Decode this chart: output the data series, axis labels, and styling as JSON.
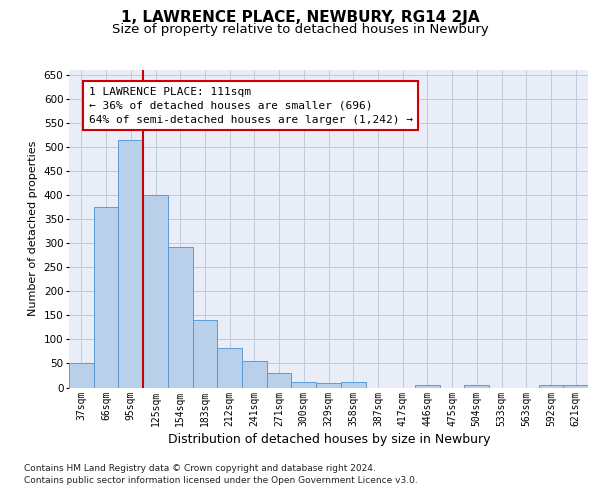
{
  "title": "1, LAWRENCE PLACE, NEWBURY, RG14 2JA",
  "subtitle": "Size of property relative to detached houses in Newbury",
  "xlabel": "Distribution of detached houses by size in Newbury",
  "ylabel": "Number of detached properties",
  "categories": [
    "37sqm",
    "66sqm",
    "95sqm",
    "125sqm",
    "154sqm",
    "183sqm",
    "212sqm",
    "241sqm",
    "271sqm",
    "300sqm",
    "329sqm",
    "358sqm",
    "387sqm",
    "417sqm",
    "446sqm",
    "475sqm",
    "504sqm",
    "533sqm",
    "563sqm",
    "592sqm",
    "621sqm"
  ],
  "values": [
    50,
    375,
    515,
    400,
    293,
    140,
    82,
    55,
    30,
    11,
    10,
    11,
    0,
    0,
    5,
    0,
    5,
    0,
    0,
    5,
    5
  ],
  "bar_color": "#b8d0ea",
  "bar_edge_color": "#5b9bd5",
  "vline_color": "#cc0000",
  "vline_bar_index": 2.5,
  "ylim_max": 660,
  "yticks": [
    0,
    50,
    100,
    150,
    200,
    250,
    300,
    350,
    400,
    450,
    500,
    550,
    600,
    650
  ],
  "annotation_text": "1 LAWRENCE PLACE: 111sqm\n← 36% of detached houses are smaller (696)\n64% of semi-detached houses are larger (1,242) →",
  "annotation_edge_color": "#cc0000",
  "background_color": "#e8edf8",
  "grid_color": "#c0cade",
  "footer_line1": "Contains HM Land Registry data © Crown copyright and database right 2024.",
  "footer_line2": "Contains public sector information licensed under the Open Government Licence v3.0.",
  "title_fontsize": 11,
  "subtitle_fontsize": 9.5,
  "xlabel_fontsize": 9,
  "ylabel_fontsize": 8,
  "annotation_fontsize": 8,
  "tick_fontsize": 7,
  "footer_fontsize": 6.5
}
